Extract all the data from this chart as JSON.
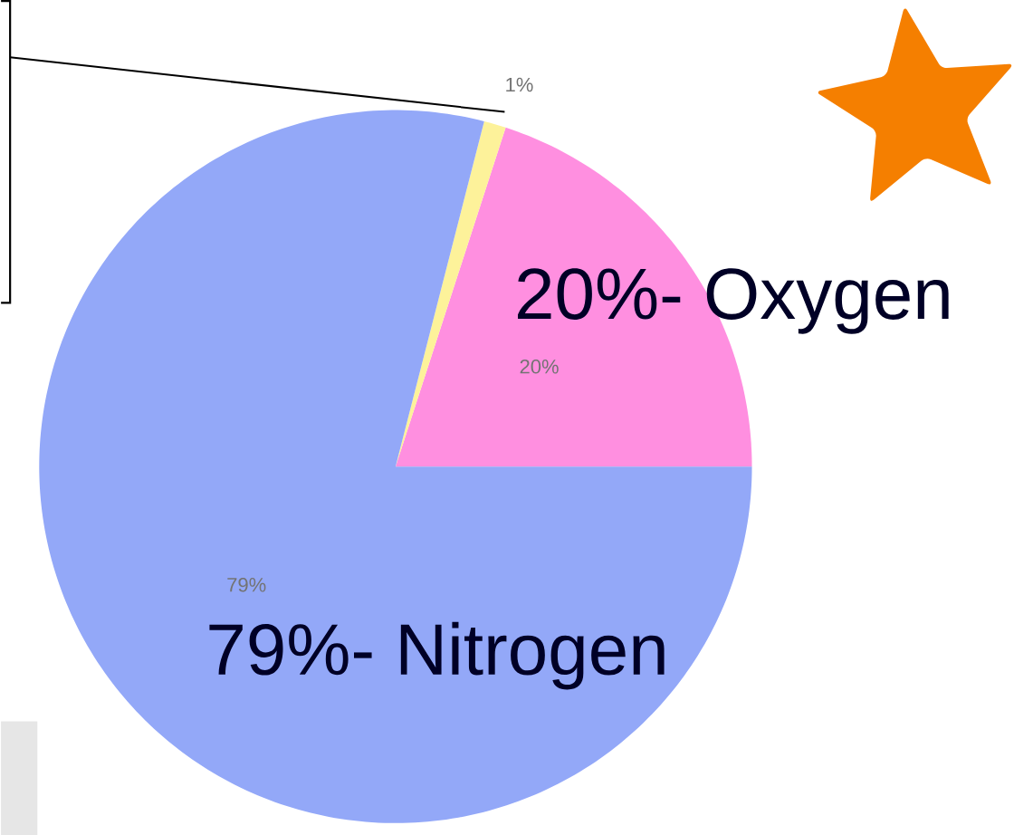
{
  "chart_data": {
    "type": "pie",
    "categories": [
      "20%- Oxygen",
      null,
      "79%- Nitrogen"
    ],
    "values": [
      20,
      1,
      79
    ],
    "value_labels": [
      "20%",
      "1%",
      "79%"
    ],
    "colors": [
      "#ff8fe0",
      "#fdf29a",
      "#93a8f8"
    ]
  }
}
